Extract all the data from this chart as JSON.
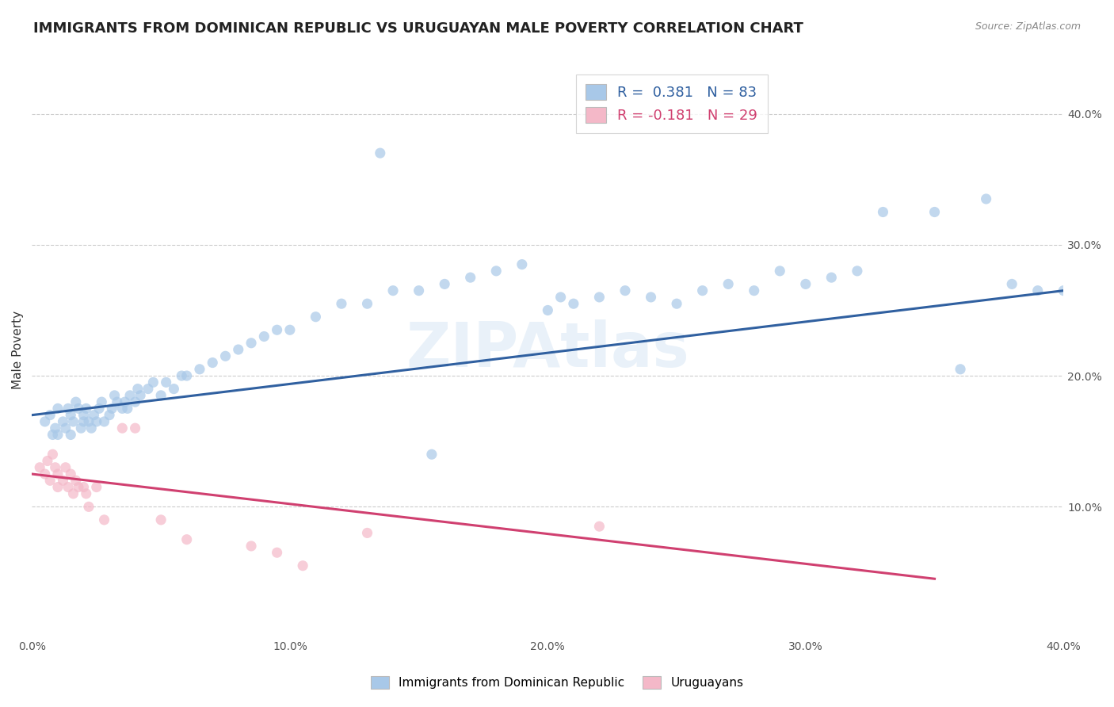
{
  "title": "IMMIGRANTS FROM DOMINICAN REPUBLIC VS URUGUAYAN MALE POVERTY CORRELATION CHART",
  "source": "Source: ZipAtlas.com",
  "xlabel": "",
  "ylabel": "Male Poverty",
  "xlim": [
    0.0,
    0.4
  ],
  "ylim": [
    0.0,
    0.44
  ],
  "xtick_labels": [
    "0.0%",
    "10.0%",
    "20.0%",
    "30.0%",
    "40.0%"
  ],
  "xtick_vals": [
    0.0,
    0.1,
    0.2,
    0.3,
    0.4
  ],
  "ytick_labels": [
    "10.0%",
    "20.0%",
    "30.0%",
    "40.0%"
  ],
  "ytick_vals": [
    0.1,
    0.2,
    0.3,
    0.4
  ],
  "grid_color": "#cccccc",
  "background_color": "#ffffff",
  "legend_R1": "0.381",
  "legend_N1": "83",
  "legend_R2": "-0.181",
  "legend_N2": "29",
  "blue_color": "#a8c8e8",
  "pink_color": "#f4b8c8",
  "blue_line_color": "#3060a0",
  "pink_line_color": "#d04070",
  "scatter_alpha": 0.7,
  "marker_size": 90,
  "blue_points_x": [
    0.005,
    0.007,
    0.008,
    0.009,
    0.01,
    0.01,
    0.012,
    0.013,
    0.014,
    0.015,
    0.015,
    0.016,
    0.017,
    0.018,
    0.019,
    0.02,
    0.02,
    0.021,
    0.022,
    0.023,
    0.024,
    0.025,
    0.026,
    0.027,
    0.028,
    0.03,
    0.031,
    0.032,
    0.033,
    0.035,
    0.036,
    0.037,
    0.038,
    0.04,
    0.041,
    0.042,
    0.045,
    0.047,
    0.05,
    0.052,
    0.055,
    0.058,
    0.06,
    0.065,
    0.07,
    0.075,
    0.08,
    0.085,
    0.09,
    0.095,
    0.1,
    0.11,
    0.12,
    0.13,
    0.14,
    0.15,
    0.16,
    0.17,
    0.18,
    0.19,
    0.2,
    0.21,
    0.22,
    0.23,
    0.24,
    0.25,
    0.26,
    0.27,
    0.28,
    0.29,
    0.3,
    0.31,
    0.32,
    0.33,
    0.35,
    0.36,
    0.37,
    0.38,
    0.39,
    0.4,
    0.205,
    0.155,
    0.135
  ],
  "blue_points_y": [
    0.165,
    0.17,
    0.155,
    0.16,
    0.175,
    0.155,
    0.165,
    0.16,
    0.175,
    0.17,
    0.155,
    0.165,
    0.18,
    0.175,
    0.16,
    0.165,
    0.17,
    0.175,
    0.165,
    0.16,
    0.17,
    0.165,
    0.175,
    0.18,
    0.165,
    0.17,
    0.175,
    0.185,
    0.18,
    0.175,
    0.18,
    0.175,
    0.185,
    0.18,
    0.19,
    0.185,
    0.19,
    0.195,
    0.185,
    0.195,
    0.19,
    0.2,
    0.2,
    0.205,
    0.21,
    0.215,
    0.22,
    0.225,
    0.23,
    0.235,
    0.235,
    0.245,
    0.255,
    0.255,
    0.265,
    0.265,
    0.27,
    0.275,
    0.28,
    0.285,
    0.25,
    0.255,
    0.26,
    0.265,
    0.26,
    0.255,
    0.265,
    0.27,
    0.265,
    0.28,
    0.27,
    0.275,
    0.28,
    0.325,
    0.325,
    0.205,
    0.335,
    0.27,
    0.265,
    0.265,
    0.26,
    0.14,
    0.37
  ],
  "pink_points_x": [
    0.003,
    0.005,
    0.006,
    0.007,
    0.008,
    0.009,
    0.01,
    0.01,
    0.012,
    0.013,
    0.014,
    0.015,
    0.016,
    0.017,
    0.018,
    0.02,
    0.021,
    0.022,
    0.025,
    0.028,
    0.035,
    0.04,
    0.05,
    0.06,
    0.085,
    0.095,
    0.105,
    0.13,
    0.22
  ],
  "pink_points_y": [
    0.13,
    0.125,
    0.135,
    0.12,
    0.14,
    0.13,
    0.125,
    0.115,
    0.12,
    0.13,
    0.115,
    0.125,
    0.11,
    0.12,
    0.115,
    0.115,
    0.11,
    0.1,
    0.115,
    0.09,
    0.16,
    0.16,
    0.09,
    0.075,
    0.07,
    0.065,
    0.055,
    0.08,
    0.085
  ],
  "blue_trend_x": [
    0.0,
    0.4
  ],
  "blue_trend_y_start": 0.17,
  "blue_trend_y_end": 0.265,
  "pink_trend_x": [
    0.0,
    0.35
  ],
  "pink_trend_y_start": 0.125,
  "pink_trend_y_end": 0.045,
  "watermark": "ZIPAtlas",
  "title_fontsize": 13,
  "axis_label_fontsize": 11,
  "tick_fontsize": 10,
  "legend_fontsize": 13
}
